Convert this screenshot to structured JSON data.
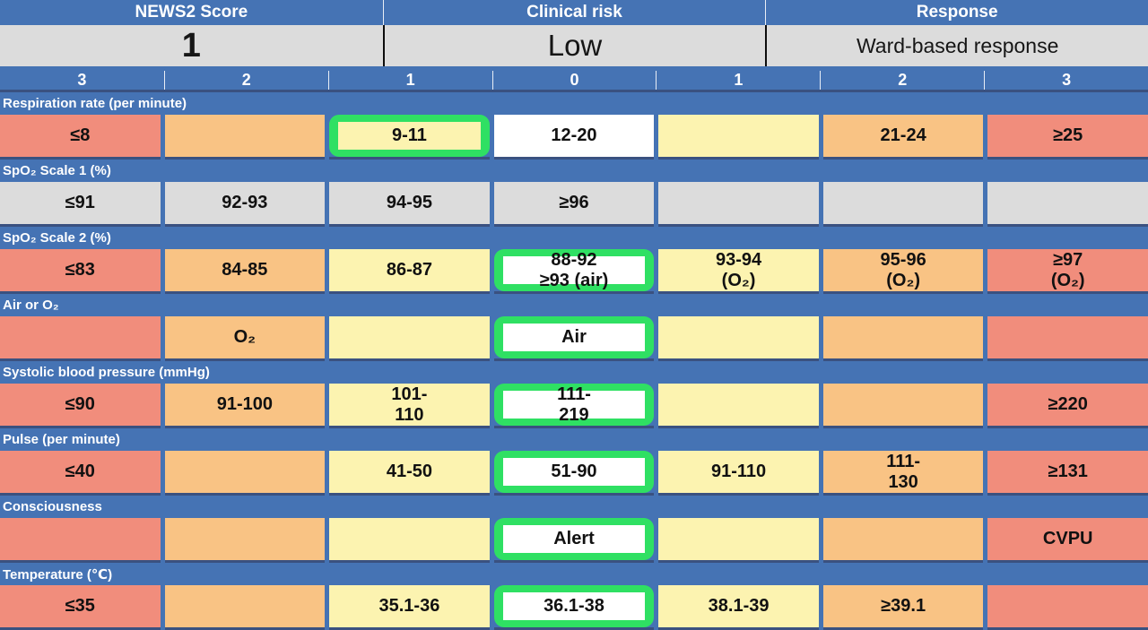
{
  "summary": {
    "columns": [
      {
        "label": "NEWS2 Score",
        "value": "1"
      },
      {
        "label": "Clinical risk",
        "value": "Low"
      },
      {
        "label": "Response",
        "value": "Ward-based response"
      }
    ]
  },
  "score_scale": [
    "3",
    "2",
    "1",
    "0",
    "1",
    "2",
    "3"
  ],
  "colors": {
    "header_blue": "#4573b4",
    "dark_divider": "#3a5180",
    "score3_red": "#f18d7c",
    "score2_orange": "#f9c384",
    "score1_yellow": "#fcf3b0",
    "score0_white": "#ffffff",
    "disabled_gray": "#dcdcdc",
    "selected_green": "#2fe063",
    "risk_bar_gray": "#dcdcdc"
  },
  "rows": [
    {
      "key": "respiration-rate",
      "label": "Respiration rate (per minute)",
      "cells": [
        {
          "text": "≤8",
          "tone": "red"
        },
        {
          "text": "",
          "tone": "orange"
        },
        {
          "text": "9-11",
          "tone": "yellow",
          "selected": true
        },
        {
          "text": "12-20",
          "tone": "white"
        },
        {
          "text": "",
          "tone": "yellow"
        },
        {
          "text": "21-24",
          "tone": "orange"
        },
        {
          "text": "≥25",
          "tone": "red"
        }
      ]
    },
    {
      "key": "spo2-scale-1",
      "label": "SpO₂ Scale 1 (%)",
      "cells": [
        {
          "text": "≤91",
          "tone": "gray"
        },
        {
          "text": "92-93",
          "tone": "gray"
        },
        {
          "text": "94-95",
          "tone": "gray"
        },
        {
          "text": "≥96",
          "tone": "gray"
        },
        {
          "text": "",
          "tone": "gray"
        },
        {
          "text": "",
          "tone": "gray"
        },
        {
          "text": "",
          "tone": "gray"
        }
      ]
    },
    {
      "key": "spo2-scale-2",
      "label": "SpO₂ Scale 2 (%)",
      "cells": [
        {
          "text": "≤83",
          "tone": "red"
        },
        {
          "text": "84-85",
          "tone": "orange"
        },
        {
          "text": "86-87",
          "tone": "yellow"
        },
        {
          "text": "88-92\n≥93 (air)",
          "tone": "white",
          "selected": true
        },
        {
          "text": "93-94\n(O₂)",
          "tone": "yellow"
        },
        {
          "text": "95-96\n(O₂)",
          "tone": "orange"
        },
        {
          "text": "≥97\n(O₂)",
          "tone": "red"
        }
      ]
    },
    {
      "key": "air-or-o2",
      "label": "Air or O₂",
      "cells": [
        {
          "text": "",
          "tone": "red"
        },
        {
          "text": "O₂",
          "tone": "orange"
        },
        {
          "text": "",
          "tone": "yellow"
        },
        {
          "text": "Air",
          "tone": "white",
          "selected": true
        },
        {
          "text": "",
          "tone": "yellow"
        },
        {
          "text": "",
          "tone": "orange"
        },
        {
          "text": "",
          "tone": "red"
        }
      ]
    },
    {
      "key": "systolic-bp",
      "label": "Systolic blood pressure (mmHg)",
      "cells": [
        {
          "text": "≤90",
          "tone": "red"
        },
        {
          "text": "91-100",
          "tone": "orange"
        },
        {
          "text": "101-\n110",
          "tone": "yellow"
        },
        {
          "text": "111-\n219",
          "tone": "white",
          "selected": true
        },
        {
          "text": "",
          "tone": "yellow"
        },
        {
          "text": "",
          "tone": "orange"
        },
        {
          "text": "≥220",
          "tone": "red"
        }
      ]
    },
    {
      "key": "pulse",
      "label": "Pulse (per minute)",
      "cells": [
        {
          "text": "≤40",
          "tone": "red"
        },
        {
          "text": "",
          "tone": "orange"
        },
        {
          "text": "41-50",
          "tone": "yellow"
        },
        {
          "text": "51-90",
          "tone": "white",
          "selected": true
        },
        {
          "text": "91-110",
          "tone": "yellow"
        },
        {
          "text": "111-\n130",
          "tone": "orange"
        },
        {
          "text": "≥131",
          "tone": "red"
        }
      ]
    },
    {
      "key": "consciousness",
      "label": "Consciousness",
      "cells": [
        {
          "text": "",
          "tone": "red"
        },
        {
          "text": "",
          "tone": "orange"
        },
        {
          "text": "",
          "tone": "yellow"
        },
        {
          "text": "Alert",
          "tone": "white",
          "selected": true
        },
        {
          "text": "",
          "tone": "yellow"
        },
        {
          "text": "",
          "tone": "orange"
        },
        {
          "text": "CVPU",
          "tone": "red"
        }
      ]
    },
    {
      "key": "temperature",
      "label": "Temperature (℃)",
      "cells": [
        {
          "text": "≤35",
          "tone": "red"
        },
        {
          "text": "",
          "tone": "orange"
        },
        {
          "text": "35.1-36",
          "tone": "yellow"
        },
        {
          "text": "36.1-38",
          "tone": "white",
          "selected": true
        },
        {
          "text": "38.1-39",
          "tone": "yellow"
        },
        {
          "text": "≥39.1",
          "tone": "orange"
        },
        {
          "text": "",
          "tone": "red"
        }
      ]
    }
  ]
}
